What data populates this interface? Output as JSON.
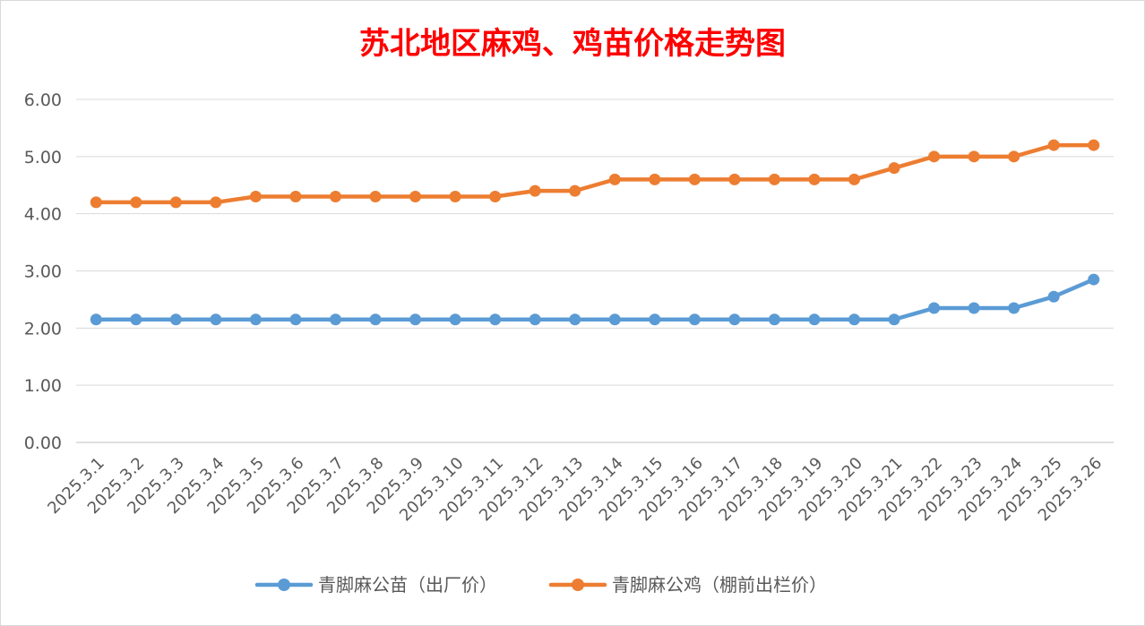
{
  "chart_data": {
    "type": "line",
    "title": "苏北地区麻鸡、鸡苗价格走势图",
    "title_color": "#ff0000",
    "categories": [
      "2025.3.1",
      "2025.3.2",
      "2025.3.3",
      "2025.3.4",
      "2025.3.5",
      "2025.3.6",
      "2025.3.7",
      "2025.3.8",
      "2025.3.9",
      "2025.3.10",
      "2025.3.11",
      "2025.3.12",
      "2025.3.13",
      "2025.3.14",
      "2025.3.15",
      "2025.3.16",
      "2025.3.17",
      "2025.3.18",
      "2025.3.19",
      "2025.3.20",
      "2025.3.21",
      "2025.3.22",
      "2025.3.23",
      "2025.3.24",
      "2025.3.25",
      "2025.3.26"
    ],
    "series": [
      {
        "name": "青脚麻公苗（出厂价）",
        "color": "#5b9bd5",
        "values": [
          2.15,
          2.15,
          2.15,
          2.15,
          2.15,
          2.15,
          2.15,
          2.15,
          2.15,
          2.15,
          2.15,
          2.15,
          2.15,
          2.15,
          2.15,
          2.15,
          2.15,
          2.15,
          2.15,
          2.15,
          2.15,
          2.35,
          2.35,
          2.35,
          2.55,
          2.85
        ]
      },
      {
        "name": "青脚麻公鸡（棚前出栏价）",
        "color": "#ed7d31",
        "values": [
          4.2,
          4.2,
          4.2,
          4.2,
          4.3,
          4.3,
          4.3,
          4.3,
          4.3,
          4.3,
          4.3,
          4.4,
          4.4,
          4.6,
          4.6,
          4.6,
          4.6,
          4.6,
          4.6,
          4.6,
          4.8,
          5.0,
          5.0,
          5.0,
          5.2,
          5.2
        ]
      }
    ],
    "yticks": [
      "0.00",
      "1.00",
      "2.00",
      "3.00",
      "4.00",
      "5.00",
      "6.00"
    ],
    "ylim": [
      0,
      6
    ],
    "xlabel": "",
    "ylabel": "",
    "grid": true,
    "legend_position": "bottom"
  }
}
